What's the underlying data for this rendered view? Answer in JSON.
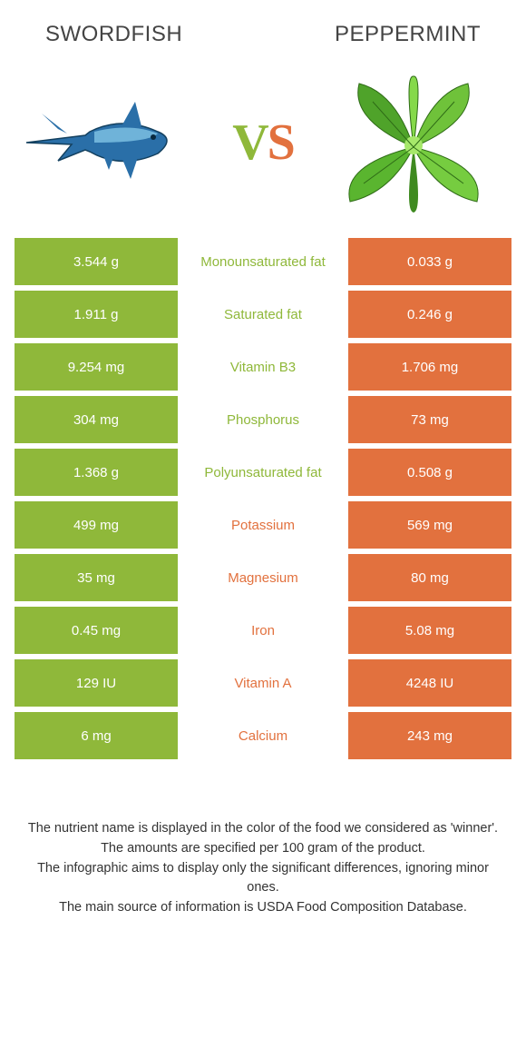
{
  "header": {
    "left": "SWORDFISH",
    "right": "PEPPERMINT"
  },
  "vs": {
    "v": "V",
    "s": "S"
  },
  "colors": {
    "green": "#8fb83a",
    "orange": "#e2713e",
    "white": "#ffffff"
  },
  "table": {
    "rows": [
      {
        "left": "3.544 g",
        "mid": "Monounsaturated fat",
        "right": "0.033 g",
        "winner": "left"
      },
      {
        "left": "1.911 g",
        "mid": "Saturated fat",
        "right": "0.246 g",
        "winner": "left"
      },
      {
        "left": "9.254 mg",
        "mid": "Vitamin B3",
        "right": "1.706 mg",
        "winner": "left"
      },
      {
        "left": "304 mg",
        "mid": "Phosphorus",
        "right": "73 mg",
        "winner": "left"
      },
      {
        "left": "1.368 g",
        "mid": "Polyunsaturated fat",
        "right": "0.508 g",
        "winner": "left"
      },
      {
        "left": "499 mg",
        "mid": "Potassium",
        "right": "569 mg",
        "winner": "right"
      },
      {
        "left": "35 mg",
        "mid": "Magnesium",
        "right": "80 mg",
        "winner": "right"
      },
      {
        "left": "0.45 mg",
        "mid": "Iron",
        "right": "5.08 mg",
        "winner": "right"
      },
      {
        "left": "129 IU",
        "mid": "Vitamin A",
        "right": "4248 IU",
        "winner": "right"
      },
      {
        "left": "6 mg",
        "mid": "Calcium",
        "right": "243 mg",
        "winner": "right"
      }
    ]
  },
  "footer": {
    "line1": "The nutrient name is displayed in the color of the food we considered as 'winner'.",
    "line2": "The amounts are specified per 100 gram of the product.",
    "line3": "The infographic aims to display only the significant differences, ignoring minor ones.",
    "line4": "The main source of information is USDA Food Composition Database."
  }
}
